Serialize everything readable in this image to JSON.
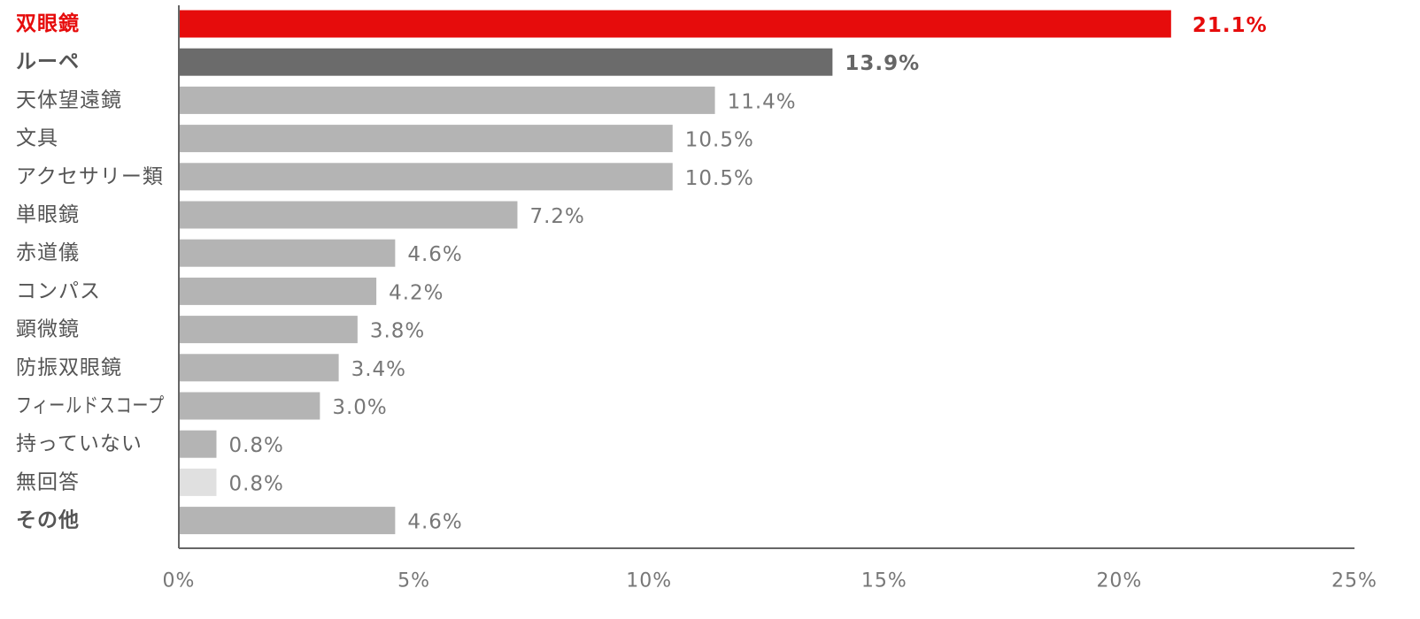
{
  "chart_data": {
    "type": "bar",
    "orientation": "horizontal",
    "categories": [
      "双眼鏡",
      "ルーペ",
      "天体望遠鏡",
      "文具",
      "アクセサリー類",
      "単眼鏡",
      "赤道儀",
      "コンパス",
      "顕微鏡",
      "防振双眼鏡",
      "フィールドスコープ",
      "持っていない",
      "無回答",
      "その他"
    ],
    "values": [
      21.1,
      13.9,
      11.4,
      10.5,
      10.5,
      7.2,
      4.6,
      4.2,
      3.8,
      3.4,
      3.0,
      0.8,
      0.8,
      4.6
    ],
    "value_labels": [
      "21.1%",
      "13.9%",
      "11.4%",
      "10.5%",
      "10.5%",
      "7.2%",
      "4.6%",
      "4.2%",
      "3.8%",
      "3.4%",
      "3.0%",
      "0.8%",
      "0.8%",
      "4.6%"
    ],
    "bar_colors": [
      "#e60c0c",
      "#6b6b6b",
      "#b4b4b4",
      "#b4b4b4",
      "#b4b4b4",
      "#b4b4b4",
      "#b4b4b4",
      "#b4b4b4",
      "#b4b4b4",
      "#b4b4b4",
      "#b4b4b4",
      "#b4b4b4",
      "#e0e0e0",
      "#b4b4b4"
    ],
    "label_colors": [
      "#e60c0c",
      "#555555",
      "#555555",
      "#555555",
      "#555555",
      "#555555",
      "#555555",
      "#555555",
      "#555555",
      "#555555",
      "#555555",
      "#555555",
      "#555555",
      "#555555"
    ],
    "value_label_colors": [
      "#e60c0c",
      "#666666",
      "#777777",
      "#777777",
      "#777777",
      "#777777",
      "#777777",
      "#777777",
      "#777777",
      "#777777",
      "#777777",
      "#777777",
      "#777777",
      "#777777"
    ],
    "bold_categories": [
      "双眼鏡",
      "ルーペ",
      "その他"
    ],
    "xlim": [
      0,
      25
    ],
    "x_ticks": [
      0,
      5,
      10,
      15,
      20,
      25
    ],
    "x_tick_labels": [
      "0%",
      "5%",
      "10%",
      "15%",
      "20%",
      "25%"
    ],
    "title": "",
    "xlabel": "",
    "ylabel": "",
    "grid": false,
    "legend": "none"
  }
}
